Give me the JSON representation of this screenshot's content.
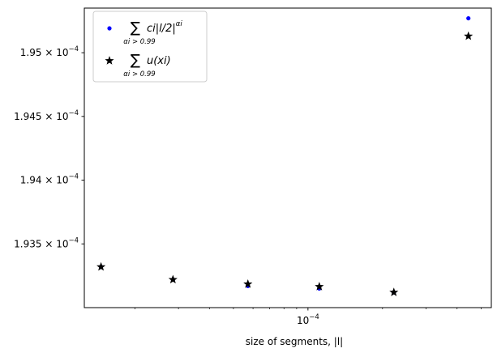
{
  "chart_data": {
    "type": "scatter",
    "xscale": "log",
    "xlabel": "size of segments, |l|",
    "xlim": [
      1.25e-05,
      0.00055
    ],
    "ylim": [
      0.000193,
      0.00019535
    ],
    "xticks": [
      {
        "value": 0.0001,
        "label_base": "10",
        "label_exp": "−4"
      }
    ],
    "yticks": [
      {
        "value": 0.0001935,
        "label_mantissa": "1.935",
        "label_exp": "−4"
      },
      {
        "value": 0.000194,
        "label_mantissa": "1.94",
        "label_exp": "−4"
      },
      {
        "value": 0.0001945,
        "label_mantissa": "1.945",
        "label_exp": "−4"
      },
      {
        "value": 0.000195,
        "label_mantissa": "1.95",
        "label_exp": "−4"
      }
    ],
    "grid": false,
    "legend_position": "top-left",
    "series": [
      {
        "marker": "dot",
        "color": "#0000ff",
        "legend": {
          "sum": "∑",
          "subscript": "αi > 0.99",
          "expr": "ci|l/2|",
          "sup": "αi"
        },
        "x": [
          1.46e-05,
          2.85e-05,
          5.72e-05,
          0.0001111,
          0.0002222,
          0.0004444
        ],
        "y": [
          0.00019332,
          0.00019322,
          0.00019317,
          0.00019315,
          0.00019312,
          0.00019527
        ]
      },
      {
        "marker": "star",
        "color": "#000000",
        "legend": {
          "sum": "∑",
          "subscript": "αi > 0.99",
          "expr": "u(xi)"
        },
        "x": [
          1.46e-05,
          2.85e-05,
          5.72e-05,
          0.0001111,
          0.0002222,
          0.0004444
        ],
        "y": [
          0.00019332,
          0.00019322,
          0.000193185,
          0.000193165,
          0.00019312,
          0.00019513
        ]
      }
    ]
  }
}
